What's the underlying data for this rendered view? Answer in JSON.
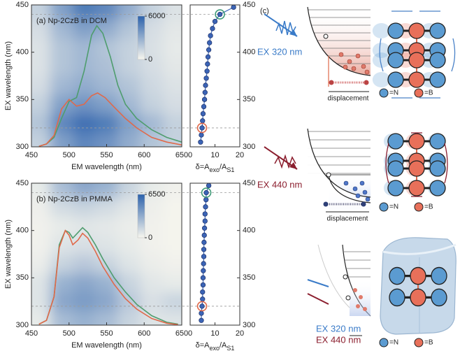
{
  "chart_data": [
    {
      "type": "heatmap",
      "label": "(a) Np-2CzB in DCM",
      "xlabel": "EM wavelength (nm)",
      "ylabel": "EX wavelength (nm)",
      "xlim": [
        450,
        650
      ],
      "xticks": [
        450,
        500,
        550,
        600,
        650
      ],
      "ylim": [
        300,
        450
      ],
      "yticks": [
        300,
        350,
        400,
        450
      ],
      "heatmap": {
        "x": [
          460,
          490,
          520,
          550,
          580,
          610,
          640
        ],
        "y": [
          305,
          325,
          345,
          365,
          385,
          405,
          425,
          445
        ],
        "z": [
          [
            1500,
            3500,
            4500,
            4000,
            3000,
            2000,
            1500
          ],
          [
            2000,
            4500,
            5500,
            5000,
            3500,
            2500,
            1500
          ],
          [
            1500,
            3500,
            4000,
            3500,
            2500,
            1500,
            1000
          ],
          [
            1000,
            2500,
            3000,
            2500,
            2000,
            1200,
            800
          ],
          [
            800,
            2000,
            2500,
            2200,
            1500,
            1000,
            600
          ],
          [
            800,
            2000,
            2500,
            2000,
            1500,
            900,
            500
          ],
          [
            1000,
            2500,
            3500,
            3000,
            2000,
            1000,
            600
          ],
          [
            1500,
            3500,
            5000,
            4500,
            3000,
            1500,
            800
          ]
        ]
      },
      "colorbar": {
        "lim": [
          0,
          6000
        ],
        "ticks": [
          0,
          6000
        ]
      },
      "hlines": [
        320,
        440
      ],
      "series": [
        {
          "color": "#4f9d6e",
          "x": [
            460,
            470,
            480,
            490,
            500,
            510,
            520,
            530,
            537,
            545,
            555,
            565,
            575,
            590,
            610,
            630,
            650
          ],
          "values": [
            300.5,
            303,
            310,
            330,
            348,
            352,
            380,
            418,
            428,
            420,
            395,
            365,
            345,
            330,
            318,
            310,
            305
          ]
        },
        {
          "color": "#e0694a",
          "x": [
            460,
            470,
            480,
            490,
            500,
            510,
            520,
            530,
            538,
            548,
            560,
            575,
            590,
            610,
            630,
            650
          ],
          "values": [
            300.5,
            303,
            312,
            340,
            350,
            343,
            345,
            354,
            357,
            352,
            342,
            330,
            320,
            310,
            305,
            302
          ]
        }
      ]
    },
    {
      "type": "profile",
      "xlabel": [
        "δ=A",
        "exo",
        "/A",
        "S1"
      ],
      "xlim": [
        0,
        20
      ],
      "xticks": [
        0,
        10,
        20
      ],
      "ylim": [
        300,
        450
      ],
      "yticks": [
        300,
        350,
        400,
        450
      ],
      "color": "#3b64b6",
      "highlight": [
        2,
        18
      ],
      "highlight_color": [
        "#e0694a",
        "#3f9a78"
      ],
      "x": [
        4.2,
        4.5,
        4.8,
        5,
        5.2,
        5.5,
        5.8,
        6,
        6.2,
        6.5,
        6.8,
        7,
        7.2,
        7.5,
        7.8,
        8.2,
        9,
        10,
        12,
        17.5
      ],
      "y": [
        305,
        312.5,
        320,
        327.5,
        335,
        342.5,
        350,
        357.5,
        365,
        372.5,
        380,
        387.5,
        395,
        402.5,
        410,
        417.5,
        425,
        432.5,
        440,
        447.5
      ]
    },
    {
      "type": "heatmap",
      "label": "(b) Np-2CzB in PMMA",
      "xlabel": "EM wavelength (nm)",
      "ylabel": "EX wavelength (nm)",
      "xlim": [
        450,
        650
      ],
      "xticks": [
        450,
        500,
        550,
        600,
        650
      ],
      "ylim": [
        300,
        450
      ],
      "yticks": [
        300,
        350,
        400,
        450
      ],
      "heatmap": {
        "x": [
          460,
          490,
          520,
          550,
          580,
          610,
          640
        ],
        "y": [
          305,
          325,
          345,
          365,
          385,
          405,
          425,
          445
        ],
        "z": [
          [
            500,
            2500,
            3000,
            2500,
            1500,
            800,
            800
          ],
          [
            800,
            3500,
            4000,
            3500,
            2000,
            1000,
            1500
          ],
          [
            800,
            3000,
            3500,
            3000,
            1500,
            700,
            500
          ],
          [
            400,
            1500,
            2000,
            1500,
            800,
            400,
            200
          ],
          [
            200,
            800,
            1000,
            800,
            500,
            200,
            100
          ],
          [
            200,
            500,
            700,
            600,
            400,
            200,
            100
          ],
          [
            300,
            1200,
            1500,
            1200,
            700,
            300,
            100
          ],
          [
            500,
            2500,
            3500,
            3000,
            1500,
            500,
            200
          ]
        ]
      },
      "colorbar": {
        "lim": [
          0,
          6500
        ],
        "ticks": [
          0,
          6500
        ]
      },
      "hlines": [
        320,
        440
      ],
      "series": [
        {
          "color": "#4f9d6e",
          "x": [
            460,
            470,
            480,
            487,
            495,
            500,
            505,
            512,
            518,
            525,
            535,
            545,
            560,
            575,
            590,
            610,
            630,
            645
          ],
          "values": [
            301,
            305,
            330,
            385,
            400,
            398,
            392,
            398,
            403,
            398,
            385,
            370,
            350,
            335,
            322,
            310,
            303,
            301
          ]
        },
        {
          "color": "#e0694a",
          "x": [
            460,
            470,
            480,
            487,
            495,
            500,
            505,
            512,
            518,
            525,
            535,
            545,
            560,
            575,
            590,
            610,
            630,
            645
          ],
          "values": [
            301,
            305,
            330,
            382,
            400,
            395,
            385,
            390,
            397,
            392,
            378,
            362,
            343,
            328,
            317,
            307,
            302,
            300.5
          ]
        }
      ]
    },
    {
      "type": "profile",
      "xlabel": [
        "δ=A",
        "exo",
        "/A",
        "S1"
      ],
      "xlim": [
        0,
        20
      ],
      "xticks": [
        0,
        10,
        20
      ],
      "ylim": [
        300,
        450
      ],
      "yticks": [
        300,
        350,
        400,
        450
      ],
      "color": "#3b64b6",
      "highlight": [
        2,
        18
      ],
      "highlight_color": [
        "#e0694a",
        "#3f9a78"
      ],
      "x": [
        4.5,
        4.5,
        4.8,
        5,
        5,
        5.2,
        5.2,
        5.3,
        5.4,
        5.5,
        5.5,
        5.6,
        5.7,
        5.8,
        6,
        6,
        6.2,
        6.4,
        6.5,
        7.5
      ],
      "y": [
        305,
        312.5,
        320,
        327.5,
        335,
        342.5,
        350,
        357.5,
        365,
        372.5,
        380,
        387.5,
        395,
        402.5,
        410,
        417.5,
        425,
        432.5,
        440,
        447.5
      ]
    }
  ],
  "panel_c": {
    "label": "(c)",
    "rows": [
      {
        "excitation": [
          "EX 320 nm"
        ],
        "caption": "displacement",
        "legend": [
          "=N",
          "=B"
        ]
      },
      {
        "excitation": [
          "EX 440 nm"
        ],
        "caption": "displacement",
        "legend": [
          "=N",
          "=B"
        ]
      },
      {
        "excitation": [
          "EX 320 nm",
          "EX 440 nm"
        ],
        "legend": [
          "=N",
          "=B"
        ]
      }
    ]
  }
}
